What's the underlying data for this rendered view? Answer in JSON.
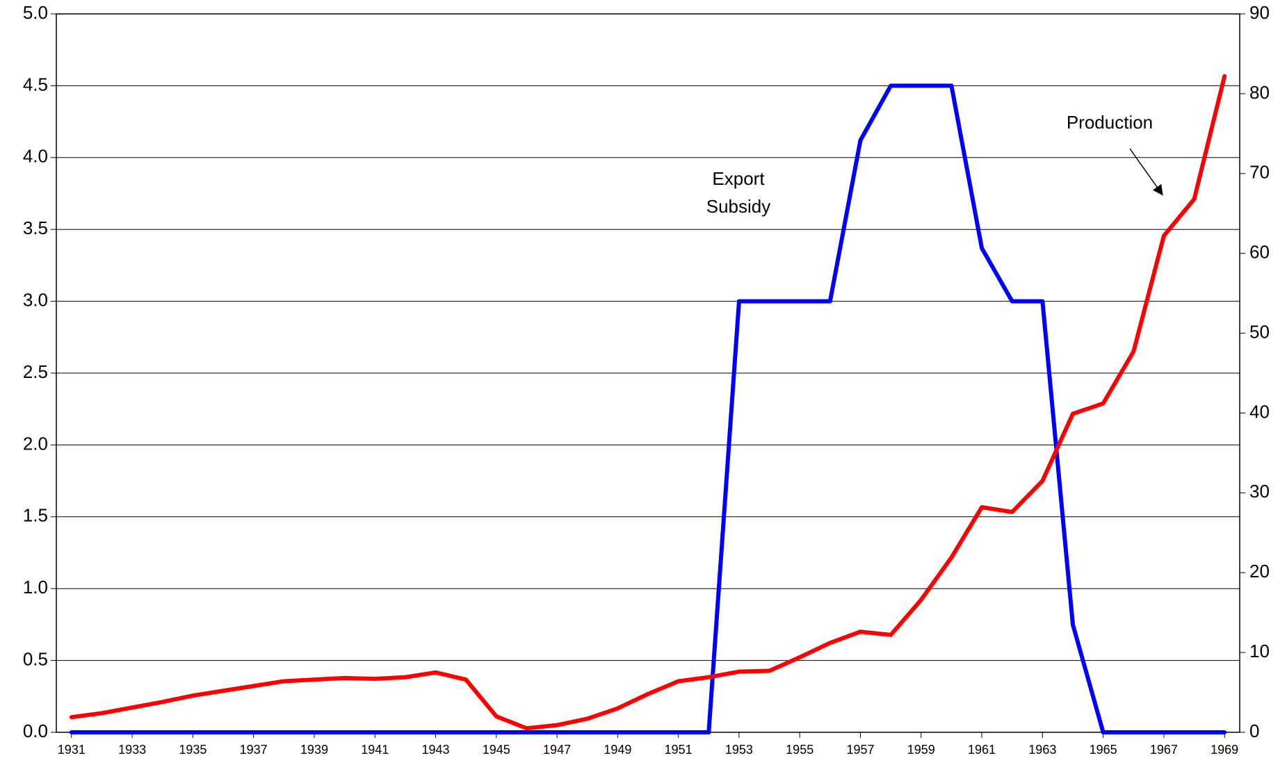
{
  "chart_data": {
    "type": "line",
    "x": [
      1931,
      1932,
      1933,
      1934,
      1935,
      1936,
      1937,
      1938,
      1939,
      1940,
      1941,
      1942,
      1943,
      1944,
      1945,
      1946,
      1947,
      1948,
      1949,
      1950,
      1951,
      1952,
      1953,
      1954,
      1955,
      1956,
      1957,
      1958,
      1959,
      1960,
      1961,
      1962,
      1963,
      1964,
      1965,
      1966,
      1967,
      1968,
      1969
    ],
    "series": [
      {
        "color": "#0000ff",
        "values": [
          0,
          0,
          0,
          0,
          0,
          0,
          0,
          0,
          0,
          0,
          0,
          0,
          0,
          0,
          0,
          0,
          0,
          0,
          0,
          0,
          0,
          0,
          3.0,
          3.0,
          3.0,
          3.0,
          4.12,
          4.5,
          4.5,
          4.5,
          3.37,
          3.0,
          3.0,
          0.75,
          0,
          0,
          0,
          0,
          0
        ]
      },
      {
        "color": "#ff0000",
        "axis": "y2",
        "values": [
          1.9,
          2.4,
          3.1,
          3.8,
          4.6,
          5.2,
          5.8,
          6.4,
          6.6,
          6.8,
          6.7,
          6.9,
          7.5,
          6.6,
          2.0,
          0.5,
          0.9,
          1.7,
          3.0,
          4.8,
          6.4,
          6.9,
          7.6,
          7.7,
          9.4,
          11.2,
          12.6,
          12.2,
          16.6,
          21.9,
          28.2,
          27.6,
          31.5,
          39.9,
          41.2,
          47.7,
          62.2,
          66.8,
          82.2
        ]
      }
    ],
    "xlim": [
      1930.5,
      1969.5
    ],
    "xticks": [
      1931,
      1933,
      1935,
      1937,
      1939,
      1941,
      1943,
      1945,
      1947,
      1949,
      1951,
      1953,
      1955,
      1957,
      1959,
      1961,
      1963,
      1965,
      1967,
      1969
    ],
    "ylim": [
      0,
      5
    ],
    "yticks": [
      {
        "value": 0,
        "label": "0.0"
      },
      0.5,
      {
        "value": 1,
        "label": "1.0"
      },
      1.5,
      {
        "value": 2,
        "label": "2.0"
      },
      2.5,
      {
        "value": 3,
        "label": "3.0"
      },
      3.5,
      {
        "value": 4,
        "label": "4.0"
      },
      4.5,
      {
        "value": 5,
        "label": "5.0"
      }
    ],
    "y2lim": [
      0,
      90
    ],
    "y2ticks": [
      0,
      10,
      20,
      30,
      40,
      50,
      60,
      70,
      80,
      90
    ],
    "grid": true,
    "annotations": [
      [
        "Export",
        "Subsidy"
      ],
      [
        "Production"
      ]
    ]
  }
}
